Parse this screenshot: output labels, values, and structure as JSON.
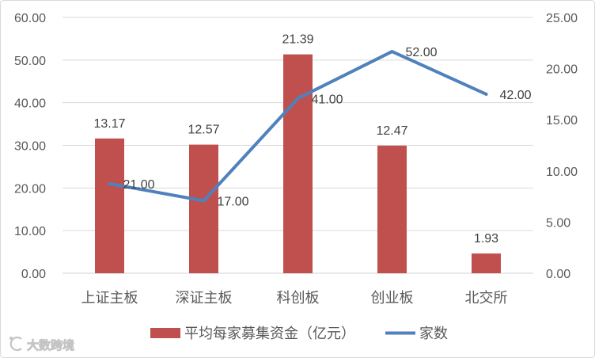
{
  "chart_data": {
    "type": "bar",
    "categories": [
      "上证主板",
      "深证主板",
      "科创板",
      "创业板",
      "北交所"
    ],
    "series": [
      {
        "name": "平均每家募集资金（亿元）",
        "type": "bar",
        "axis": "right",
        "color": "#C0504D",
        "values": [
          13.17,
          12.57,
          21.39,
          12.47,
          1.93
        ],
        "labels": [
          "13.17",
          "12.57",
          "21.39",
          "12.47",
          "1.93"
        ]
      },
      {
        "name": "家数",
        "type": "line",
        "axis": "left",
        "color": "#4F81BD",
        "values": [
          21,
          17,
          41,
          52,
          42
        ],
        "labels": [
          "21.00",
          "17.00",
          "41.00",
          "52.00",
          "42.00"
        ]
      }
    ],
    "y_left": {
      "ylim": [
        0,
        60
      ],
      "ticks": [
        "0.00",
        "10.00",
        "20.00",
        "30.00",
        "40.00",
        "50.00",
        "60.00"
      ]
    },
    "y_right": {
      "ylim": [
        0,
        25
      ],
      "ticks": [
        "0.00",
        "5.00",
        "10.00",
        "15.00",
        "20.00",
        "25.00"
      ]
    },
    "grid": true,
    "legend": "bottom"
  },
  "watermark": {
    "text": "大数跨境",
    "icon": "brand-logo-icon"
  }
}
